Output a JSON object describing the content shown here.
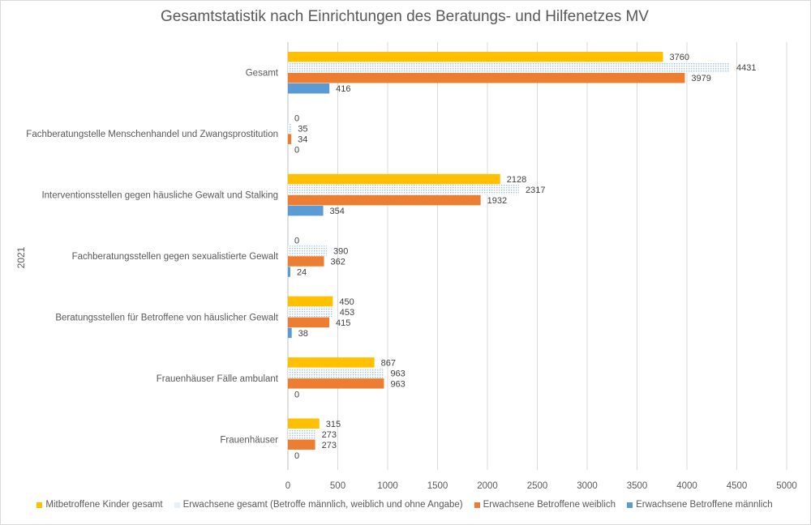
{
  "chart_data": {
    "type": "bar",
    "orientation": "horizontal",
    "title": "Gesamtstatistik nach Einrichtungen des Beratungs- und Hilfenetzes MV",
    "group_label": "2021",
    "categories": [
      "Gesamt",
      "Fachberatungstelle Menschenhandel und Zwangsprostitution",
      "Interventionsstellen gegen häusliche Gewalt und Stalking",
      "Fachberatungsstellen gegen sexualistierte Gewalt",
      "Beratungsstellen für Betroffene von häuslicher Gewalt",
      "Frauenhäuser Fälle ambulant",
      "Frauenhäuser"
    ],
    "series": [
      {
        "name": "Mitbetroffene Kinder gesamt",
        "color": "#FFC000",
        "pattern": "solid",
        "values": [
          3760,
          0,
          2128,
          0,
          450,
          867,
          315
        ]
      },
      {
        "name": "Erwachsene gesamt (Betroffe männlich, weiblich und ohne Angabe)",
        "color": "#9DC3E6",
        "pattern": "dotted",
        "values": [
          4431,
          35,
          2317,
          390,
          453,
          963,
          273
        ]
      },
      {
        "name": "Erwachsene Betroffene weiblich",
        "color": "#ED7D31",
        "pattern": "solid",
        "values": [
          3979,
          34,
          1932,
          362,
          415,
          963,
          273
        ]
      },
      {
        "name": "Erwachsene Betroffene männlich",
        "color": "#5B9BD5",
        "pattern": "solid",
        "values": [
          416,
          0,
          354,
          24,
          38,
          0,
          0
        ]
      }
    ],
    "xlim": [
      0,
      5000
    ],
    "x_ticks": [
      "0",
      "500",
      "1000",
      "1500",
      "2000",
      "2500",
      "3000",
      "3500",
      "4000",
      "4500",
      "5000"
    ],
    "grid": true,
    "legend_position": "bottom"
  }
}
